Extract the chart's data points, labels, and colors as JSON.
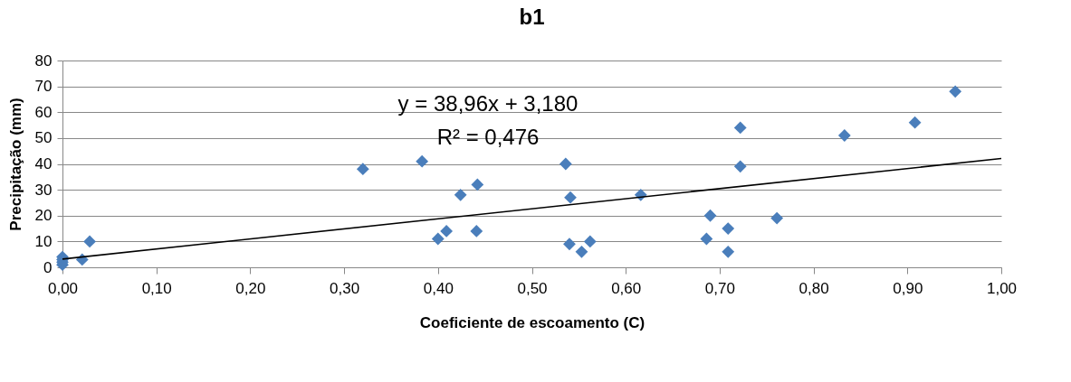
{
  "chart_data": {
    "type": "scatter",
    "title": "b1",
    "xlabel": "Coeficiente de escoamento (C)",
    "ylabel": "Precipitação (mm)",
    "series": [
      {
        "color": "#4a7ebb",
        "marker": "diamond",
        "x": [
          0,
          0,
          0,
          0,
          0.021,
          0.029,
          0.32,
          0.383,
          0.424,
          0.442,
          0.4,
          0.409,
          0.441,
          0.536,
          0.541,
          0.54,
          0.553,
          0.562,
          0.616,
          0.69,
          0.686,
          0.709,
          0.709,
          0.722,
          0.722,
          0.761,
          0.833,
          0.908,
          0.951
        ],
        "values": [
          1,
          2,
          3,
          4,
          3,
          10,
          38,
          41,
          28,
          32,
          11,
          14,
          14,
          40,
          27,
          9,
          6,
          10,
          28,
          20,
          11,
          15,
          6,
          54,
          39,
          19,
          51,
          56,
          68
        ]
      },
      {
        "type": "line",
        "color": "#000000",
        "x": [
          0,
          1
        ],
        "values": [
          3.2,
          42.1
        ]
      }
    ],
    "annotations": [
      "y = 38,96x + 3,180",
      "R² = 0,476"
    ],
    "xlim": [
      0,
      1
    ],
    "xticks": [
      {
        "value": 0,
        "label": "0,00"
      },
      {
        "value": 0.1,
        "label": "0,10"
      },
      {
        "value": 0.2,
        "label": "0,20"
      },
      {
        "value": 0.3,
        "label": "0,30"
      },
      {
        "value": 0.4,
        "label": "0,40"
      },
      {
        "value": 0.5,
        "label": "0,50"
      },
      {
        "value": 0.6,
        "label": "0,60"
      },
      {
        "value": 0.7,
        "label": "0,70"
      },
      {
        "value": 0.8,
        "label": "0,80"
      },
      {
        "value": 0.9,
        "label": "0,90"
      },
      {
        "value": 1,
        "label": "1,00"
      }
    ],
    "ylim": [
      0,
      80
    ],
    "yticks": [
      0,
      10,
      20,
      30,
      40,
      50,
      60,
      70,
      80
    ],
    "grid": "y"
  }
}
